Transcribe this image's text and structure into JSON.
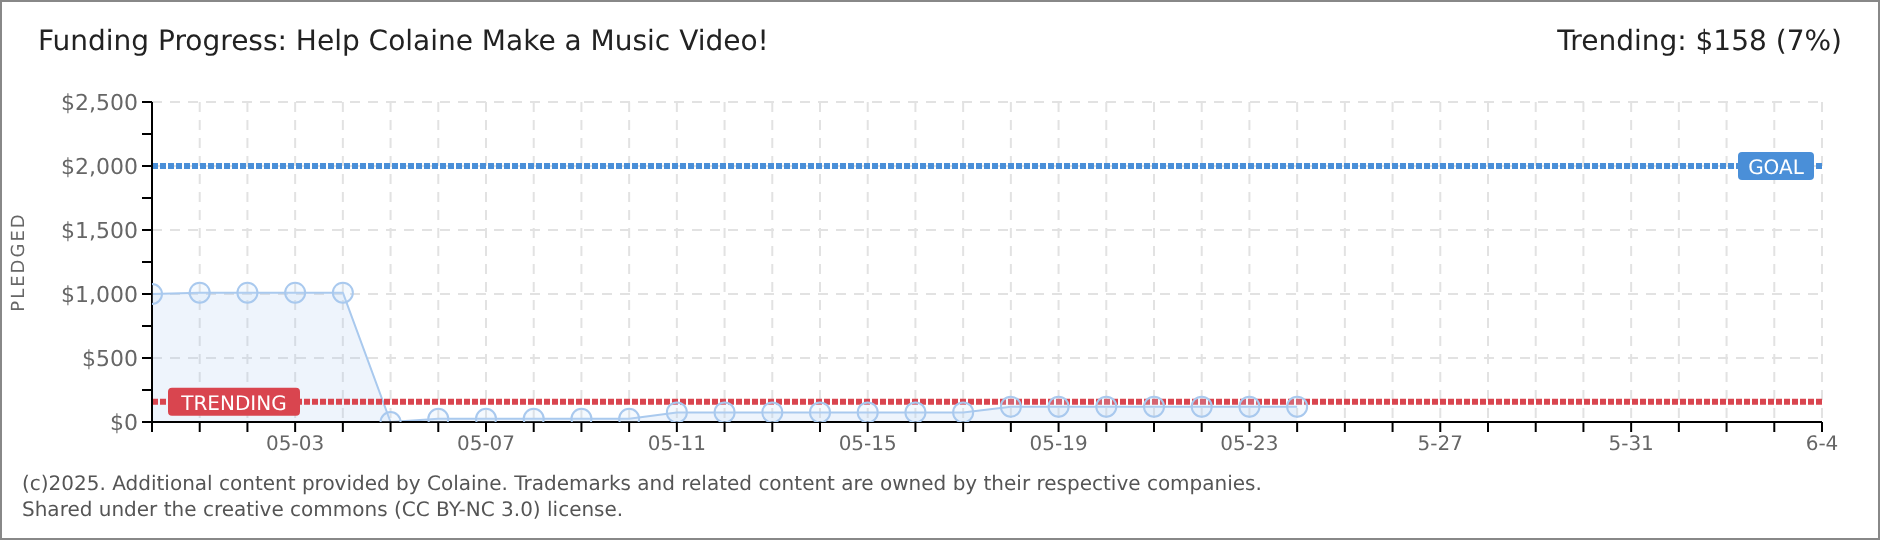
{
  "chart_data": {
    "type": "area",
    "title": "Funding Progress: Help Colaine Make a Music Video!",
    "subtitle": "Trending: $158 (7%)",
    "ylabel": "PLEDGED",
    "x": [
      "--04-30",
      "--05-01",
      "--05-02",
      "--05-03",
      "--05-04",
      "--05-05",
      "--05-06",
      "--05-07",
      "--05-08",
      "--05-09",
      "--05-10",
      "--05-11",
      "--05-12",
      "--05-13",
      "--05-14",
      "--05-15",
      "--05-16",
      "--05-17",
      "--05-18",
      "--05-19",
      "--05-20",
      "--05-21",
      "--05-22",
      "--05-23",
      "--05-24"
    ],
    "series": [
      {
        "color": "#a9c9ee",
        "values": [
          1000,
          1010,
          1010,
          1010,
          1010,
          0,
          25,
          25,
          25,
          25,
          25,
          75,
          75,
          75,
          75,
          75,
          75,
          75,
          120,
          120,
          120,
          120,
          120,
          120,
          120
        ]
      }
    ],
    "marker": "circle",
    "grid": true,
    "xlim": [
      "--04-30",
      "--06-04"
    ],
    "xticks": [
      {
        "value": "--04-30",
        "label": null
      },
      {
        "value": "--05-01",
        "label": null
      },
      {
        "value": "--05-02",
        "label": null
      },
      {
        "value": "--05-03",
        "label": "05-03"
      },
      {
        "value": "--05-04",
        "label": null
      },
      {
        "value": "--05-05",
        "label": null
      },
      {
        "value": "--05-06",
        "label": null
      },
      {
        "value": "--05-07",
        "label": "05-07"
      },
      {
        "value": "--05-08",
        "label": null
      },
      {
        "value": "--05-09",
        "label": null
      },
      {
        "value": "--05-10",
        "label": null
      },
      {
        "value": "--05-11",
        "label": "05-11"
      },
      {
        "value": "--05-12",
        "label": null
      },
      {
        "value": "--05-13",
        "label": null
      },
      {
        "value": "--05-14",
        "label": null
      },
      {
        "value": "--05-15",
        "label": "05-15"
      },
      {
        "value": "--05-16",
        "label": null
      },
      {
        "value": "--05-17",
        "label": null
      },
      {
        "value": "--05-18",
        "label": null
      },
      {
        "value": "--05-19",
        "label": "05-19"
      },
      {
        "value": "--05-20",
        "label": null
      },
      {
        "value": "--05-21",
        "label": null
      },
      {
        "value": "--05-22",
        "label": null
      },
      {
        "value": "--05-23",
        "label": "05-23"
      },
      {
        "value": "--05-24",
        "label": null
      },
      {
        "value": "--05-25",
        "label": null
      },
      {
        "value": "--05-26",
        "label": null
      },
      {
        "value": "--05-27",
        "label": "5-27"
      },
      {
        "value": "--05-28",
        "label": null
      },
      {
        "value": "--05-29",
        "label": null
      },
      {
        "value": "--05-30",
        "label": null
      },
      {
        "value": "--05-31",
        "label": "5-31"
      },
      {
        "value": "--06-01",
        "label": null
      },
      {
        "value": "--06-02",
        "label": null
      },
      {
        "value": "--06-03",
        "label": null
      },
      {
        "value": "--06-04",
        "label": "6-4"
      }
    ],
    "ylim": [
      0,
      2500
    ],
    "yticks": [
      {
        "value": 0,
        "label": "$0"
      },
      {
        "value": 250,
        "label": null
      },
      {
        "value": 500,
        "label": "$500"
      },
      {
        "value": 750,
        "label": null
      },
      {
        "value": 1000,
        "label": "$1,000"
      },
      {
        "value": 1250,
        "label": null
      },
      {
        "value": 1500,
        "label": "$1,500"
      },
      {
        "value": 1750,
        "label": null
      },
      {
        "value": 2000,
        "label": "$2,000"
      },
      {
        "value": 2250,
        "label": null
      },
      {
        "value": 2500,
        "label": "$2,500"
      }
    ],
    "ref_lines": [
      {
        "axis": "y",
        "value": 2000,
        "label": "GOAL",
        "color": "#4a8fd8",
        "line_style": "dotted"
      },
      {
        "axis": "y",
        "value": 158,
        "label": "TRENDING",
        "color": "#d9454f",
        "line_style": "dotted"
      }
    ],
    "annotations": [
      "(c)2025. Additional content provided by Colaine. Trademarks and related content are owned by their respective companies.",
      "Shared under the creative commons (CC BY-NC 3.0) license."
    ]
  }
}
